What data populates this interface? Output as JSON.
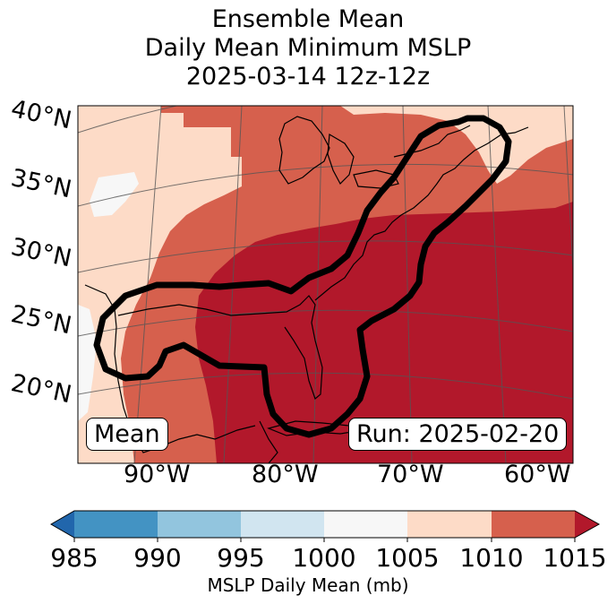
{
  "title": {
    "line1": "Ensemble Mean",
    "line2": "Daily Mean Minimum MSLP",
    "line3": "2025-03-14 12z-12z"
  },
  "map": {
    "lat_labels": [
      "40°N",
      "35°N",
      "30°N",
      "25°N",
      "20°N"
    ],
    "lon_labels": [
      "90°W",
      "80°W",
      "70°W",
      "60°W"
    ],
    "left_label": "Mean",
    "right_label": "Run: 2025-02-20",
    "fill_colors": {
      "1000_1005": "#f7f7f7",
      "1005_1010": "#fddbc7",
      "1010_1015": "#d6604d",
      "above_1015": "#b2182b"
    },
    "contour_color": "#000000"
  },
  "colorbar": {
    "ticks": [
      "985",
      "990",
      "995",
      "1000",
      "1005",
      "1010",
      "1015"
    ],
    "label": "MSLP Daily Mean (mb)",
    "under_color": "#2166ac",
    "over_color": "#b2182b",
    "colors": [
      "#4393c3",
      "#92c5de",
      "#d1e5f0",
      "#f7f7f7",
      "#fddbc7",
      "#d6604d"
    ]
  }
}
